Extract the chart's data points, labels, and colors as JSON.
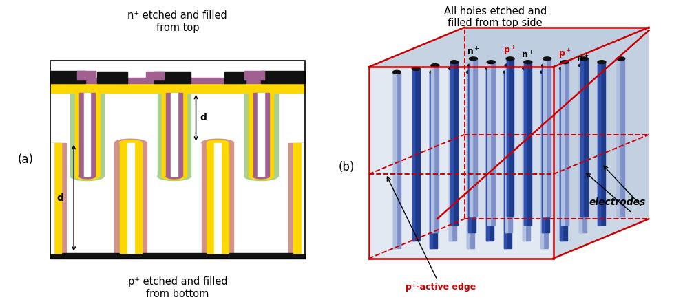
{
  "title_a": "n⁺ etched and filled\nfrom top",
  "title_b": "All holes etched and\nfilled from top side",
  "label_a": "(a)",
  "label_b": "(b)",
  "caption_a": "p⁺ etched and filled\nfrom bottom",
  "label_electrodes": "electrodes",
  "label_active_edge": "p⁺-active edge",
  "color_yellow": "#FFD700",
  "color_pink": "#D4938A",
  "color_purple": "#A06090",
  "color_black": "#111111",
  "color_green": "#A8D090",
  "color_dark_blue": "#1E3A8A",
  "color_light_blue": "#8090C8",
  "color_red": "#CC0000",
  "color_box_fill": "#C8D4E8",
  "color_box_fill2": "#B8C8DC"
}
